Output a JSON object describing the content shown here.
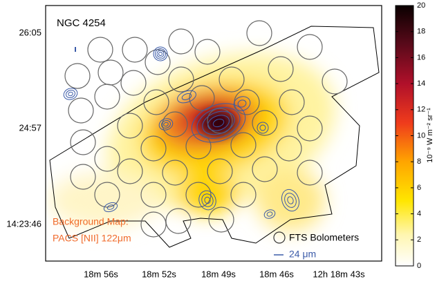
{
  "title": "NGC 4254",
  "y_ticks": [
    "26:05",
    "24:57",
    "14:23:46"
  ],
  "x_ticks": [
    "18m 56s",
    "18m 52s",
    "18m 49s",
    "18m 46s",
    "12h 18m 43s"
  ],
  "colorbar": {
    "label": "10⁻⁹ W m⁻² sr⁻¹",
    "ticks": [
      0,
      2,
      4,
      6,
      8,
      10,
      12,
      14,
      16,
      18,
      20
    ],
    "lim": [
      0,
      20
    ]
  },
  "legend": {
    "background": [
      "Background Map:",
      "PACS [NII] 122μm"
    ],
    "bolometers": "FTS Bolometers",
    "contour": "24 μm"
  }
}
